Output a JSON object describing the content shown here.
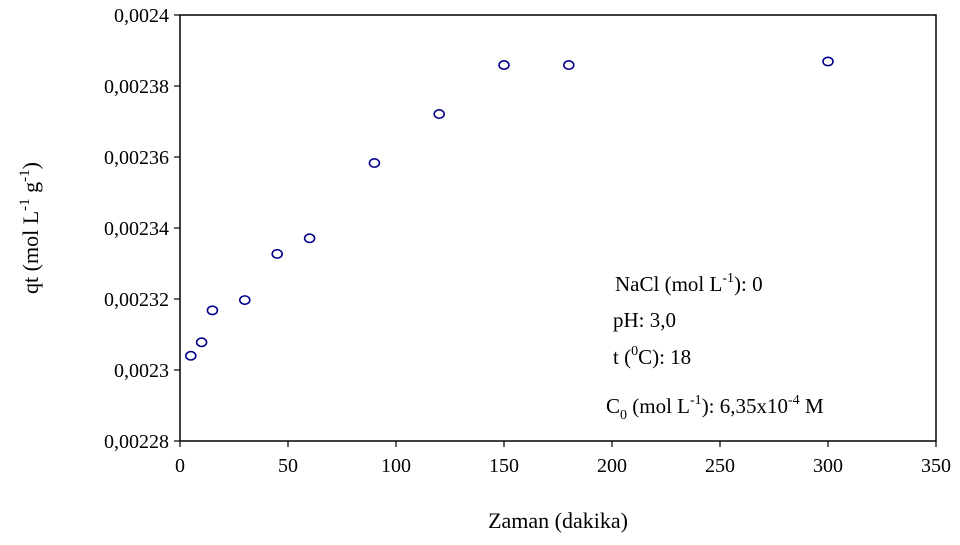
{
  "chart_data": {
    "type": "scatter",
    "xlabel": "Zaman (dakika)",
    "ylabel": {
      "text": "qt (mol L",
      "sup1": "-1",
      "mid": " g",
      "sup2": "-1",
      "end": ")"
    },
    "xlim": [
      0,
      350
    ],
    "ylim": [
      0.00228,
      0.0024
    ],
    "x_ticks": [
      0,
      50,
      100,
      150,
      200,
      250,
      300,
      350
    ],
    "x_tick_labels": [
      "0",
      "50",
      "100",
      "150",
      "200",
      "250",
      "300",
      "350"
    ],
    "y_ticks": [
      0.00228,
      0.0023,
      0.00232,
      0.00234,
      0.00236,
      0.00238,
      0.0024
    ],
    "y_tick_labels": [
      "0,00228",
      "0,0023",
      "0,00232",
      "0,00234",
      "0,00236",
      "0,00238",
      "0,0024"
    ],
    "grid": false,
    "marker_color": "#00008b",
    "series": [
      {
        "x": [
          5,
          10,
          15,
          30,
          45,
          60,
          90,
          120,
          150,
          180,
          300
        ],
        "y": [
          0.002304,
          0.0023078,
          0.0023168,
          0.0023197,
          0.0023327,
          0.0023371,
          0.0023583,
          0.0023721,
          0.0023859,
          0.0023859,
          0.0023869
        ]
      }
    ],
    "annotations": {
      "nacl": {
        "a": "NaCl (mol L",
        "sup": "-1",
        "b": "): 0"
      },
      "ph": {
        "a": "pH: 3,0"
      },
      "temp": {
        "a": "t (",
        "sup": "0",
        "b": "C): 18"
      },
      "c0": {
        "a": "C",
        "sub": "0",
        "b": " (mol L",
        "sup1": "-1",
        "c": "): 6,35x10",
        "sup2": "-4",
        "d": " M"
      }
    }
  }
}
